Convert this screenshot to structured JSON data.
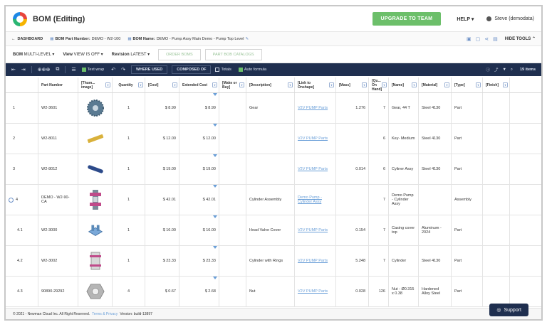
{
  "app": {
    "title": "BOM (Editing)"
  },
  "topbar": {
    "upgrade_label": "UPGRADE TO TEAM",
    "help_label": "HELP ▾",
    "user_label": "Steve (demodata)"
  },
  "subbar": {
    "dashboard_label": "DASHBOARD",
    "part_number_key": "BOM Part Number:",
    "part_number_value": "DEMO - W2-100",
    "name_key": "BOM Name:",
    "name_value": "DEMO - Pump Assy Main Demo - Pump Top Level",
    "hide_tools_label": "HIDE TOOLS ⌃"
  },
  "options": {
    "bom_key": "BOM",
    "bom_value": "MULTI-LEVEL ▾",
    "view_key": "View",
    "view_value": "VIEW IS OFF ▾",
    "revision_key": "Revision",
    "revision_value": "LATEST ▾",
    "order_boms_label": "ORDER BOMS",
    "part_catalogs_label": "PART BOB CATALOGS"
  },
  "toolbar": {
    "text_wrap_label": "Text wrap",
    "where_used_label": "WHERE USED",
    "composed_of_label": "COMPOSED OF",
    "totals_label": "Totals",
    "auto_formula_label": "Auto formula",
    "items_label": "19 items"
  },
  "table": {
    "headers": [
      "",
      "Part Number",
      "[Thum... image]",
      "Quantity",
      "[Cost]",
      "Extended Cost",
      "[Make or Buy]",
      "[Description]",
      "[Link to Onshape]",
      "[Mass]",
      "[Qu... On Hand]",
      "[Name]",
      "[Material]",
      "[Type]",
      "[Finish]"
    ],
    "rows": [
      {
        "level": "1",
        "part": "W2-3601",
        "thumb": "gear",
        "qty": "1",
        "cost": "$ 8.99",
        "ext": "$ 8.99",
        "make": "",
        "desc": "Gear",
        "link": "V2V PUMP Parts",
        "mass": "1.276",
        "onhand": "7",
        "name": "Gear, 44 T",
        "material": "Steel 4130",
        "type": "Part",
        "finish": ""
      },
      {
        "level": "2",
        "part": "W2-8011",
        "thumb": "key",
        "qty": "1",
        "cost": "$ 12.00",
        "ext": "$ 12.00",
        "make": "",
        "desc": "",
        "link": "V2V PUMP Parts",
        "mass": "",
        "onhand": "6",
        "name": "Key- Medium",
        "material": "Steel 4130",
        "type": "Part",
        "finish": ""
      },
      {
        "level": "3",
        "part": "W2-8012",
        "thumb": "rod",
        "qty": "1",
        "cost": "$ 19.00",
        "ext": "$ 19.00",
        "make": "",
        "desc": "",
        "link": "V2V PUMP Parts",
        "mass": "0.014",
        "onhand": "6",
        "name": "Cyliner Assy",
        "material": "Steel 4130",
        "type": "Part",
        "finish": ""
      },
      {
        "level": "4",
        "part": "DEMO - W2-90-CA",
        "thumb": "assy",
        "qty": "1",
        "cost": "$ 42.01",
        "ext": "$ 42.01",
        "make": "",
        "desc": "Cylinder Assembly",
        "link": "Demo Pump - Cylinder Assy",
        "mass": "",
        "onhand": "7",
        "name": "Demo Pump - Cylinder Assy",
        "material": "",
        "type": "Assembly",
        "finish": ""
      },
      {
        "level": "4.1",
        "part": "W2-3000",
        "thumb": "cover",
        "qty": "1",
        "cost": "$ 16.00",
        "ext": "$ 16.00",
        "make": "",
        "desc": "Head Valve Cover",
        "link": "V2V PUMP Parts",
        "mass": "0.154",
        "onhand": "7",
        "name": "Casing cover top",
        "material": "Aluminum - 2024",
        "type": "Part",
        "finish": ""
      },
      {
        "level": "4.2",
        "part": "W2-3002",
        "thumb": "rings",
        "qty": "1",
        "cost": "$ 23.33",
        "ext": "$ 23.33",
        "make": "",
        "desc": "Cylinder with Rings",
        "link": "V2V PUMP Parts",
        "mass": "5.248",
        "onhand": "7",
        "name": "Cylinder",
        "material": "Steel 4130",
        "type": "Part",
        "finish": ""
      },
      {
        "level": "4.3",
        "part": "90890-29292",
        "thumb": "nut",
        "qty": "4",
        "cost": "$ 0.67",
        "ext": "$ 2.68",
        "make": "",
        "desc": "Nut",
        "link": "V2V PUMP Parts",
        "mass": "0.028",
        "onhand": "126",
        "name": "Nut - Ø0.315 x 0.38",
        "material": "Hardened Alloy Steel",
        "type": "Part",
        "finish": ""
      }
    ]
  },
  "footer": {
    "copyright": "© 2021 - Newman Cloud Inc. All Right Reserved.",
    "terms": "Terms & Privacy",
    "version": "Version: build-13897"
  },
  "support_label": "Support"
}
